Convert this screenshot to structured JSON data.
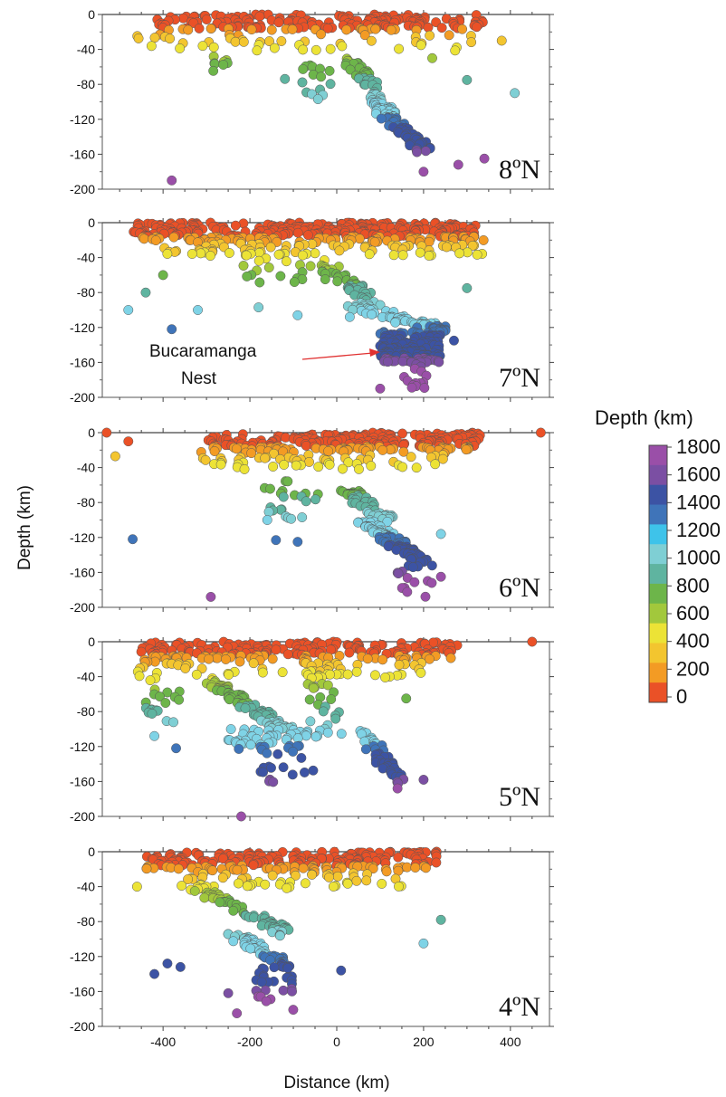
{
  "chart_data": {
    "type": "scatter",
    "xlabel": "Distance (km)",
    "ylabel": "Depth (km)",
    "xlim": [
      -540,
      490
    ],
    "ylim": [
      -200,
      0
    ],
    "xticks": [
      -400,
      -200,
      0,
      200,
      400
    ],
    "yticks": [
      0,
      -40,
      -80,
      -120,
      -160,
      -200
    ],
    "grid": false,
    "colorbar": {
      "title": "Depth (km)",
      "labels": [
        "1800",
        "1600",
        "1400",
        "1200",
        "1000",
        "800",
        "600",
        "400",
        "200",
        "0"
      ],
      "colors": [
        "#9a4fa8",
        "#7b4fa3",
        "#3c53a4",
        "#3f74b9",
        "#3ec3ea",
        "#7fcfd4",
        "#5fb4a0",
        "#6db54a",
        "#a2c83c",
        "#ece336",
        "#f3c52f",
        "#f39b24",
        "#ea5127"
      ]
    },
    "panels": [
      {
        "label": "8ºN",
        "clusters": [
          {
            "x": [
              -420,
              340
            ],
            "y": [
              0,
              -18
            ],
            "n": 180,
            "color_by": "depth"
          },
          {
            "x": [
              -470,
              340
            ],
            "y": [
              -22,
              -42
            ],
            "n": 45,
            "color_by": "depth"
          },
          {
            "x": [
              -290,
              -250
            ],
            "y": [
              -48,
              -68
            ],
            "n": 8,
            "color_by": "depth"
          },
          {
            "x": [
              -120,
              -10
            ],
            "y": [
              -58,
              -100
            ],
            "n": 16,
            "color_by": "depth"
          },
          {
            "x": [
              30,
              120
            ],
            "y": [
              -50,
              -115
            ],
            "n": 60,
            "color_by": "depth",
            "slab": true
          },
          {
            "x": [
              110,
              210
            ],
            "y": [
              -110,
              -160
            ],
            "n": 60,
            "color_by": "depth",
            "slab": true
          }
        ],
        "points": [
          {
            "x": -380,
            "y": -190
          },
          {
            "x": 410,
            "y": -90
          },
          {
            "x": 340,
            "y": -165
          },
          {
            "x": 280,
            "y": -172
          },
          {
            "x": 300,
            "y": -75
          },
          {
            "x": 220,
            "y": -50
          },
          {
            "x": 380,
            "y": -30
          },
          {
            "x": 200,
            "y": -180
          }
        ]
      },
      {
        "label": "7ºN",
        "annotation": [
          "Bucaramanga",
          "Nest"
        ],
        "clusters": [
          {
            "x": [
              -470,
              320
            ],
            "y": [
              0,
              -20
            ],
            "n": 300,
            "color_by": "depth"
          },
          {
            "x": [
              -420,
              350
            ],
            "y": [
              -20,
              -38
            ],
            "n": 110,
            "color_by": "depth"
          },
          {
            "x": [
              -240,
              -20
            ],
            "y": [
              -40,
              -70
            ],
            "n": 22,
            "color_by": "depth"
          },
          {
            "x": [
              -20,
              90
            ],
            "y": [
              -50,
              -95
            ],
            "n": 40,
            "color_by": "depth",
            "slab": true
          },
          {
            "x": [
              40,
              260
            ],
            "y": [
              -95,
              -125
            ],
            "n": 70,
            "color_by": "depth",
            "slab": true
          },
          {
            "x": [
              100,
              240
            ],
            "y": [
              -125,
              -160
            ],
            "n": 150,
            "color_by": "depth"
          },
          {
            "x": [
              150,
              210
            ],
            "y": [
              -160,
              -190
            ],
            "n": 14,
            "color_by": "depth"
          }
        ],
        "points": [
          {
            "x": -480,
            "y": -100
          },
          {
            "x": -440,
            "y": -80
          },
          {
            "x": -400,
            "y": -60
          },
          {
            "x": -380,
            "y": -122
          },
          {
            "x": -320,
            "y": -100
          },
          {
            "x": -180,
            "y": -97
          },
          {
            "x": -90,
            "y": -106
          },
          {
            "x": 300,
            "y": -75
          },
          {
            "x": 270,
            "y": -135
          },
          {
            "x": 30,
            "y": -108
          },
          {
            "x": 100,
            "y": -190
          }
        ]
      },
      {
        "label": "6ºN",
        "clusters": [
          {
            "x": [
              -300,
              330
            ],
            "y": [
              0,
              -20
            ],
            "n": 220,
            "color_by": "depth"
          },
          {
            "x": [
              -320,
              260
            ],
            "y": [
              -20,
              -42
            ],
            "n": 70,
            "color_by": "depth"
          },
          {
            "x": [
              -200,
              -40
            ],
            "y": [
              -55,
              -100
            ],
            "n": 22,
            "color_by": "depth"
          },
          {
            "x": [
              20,
              120
            ],
            "y": [
              -65,
              -100
            ],
            "n": 50,
            "color_by": "depth",
            "slab": true
          },
          {
            "x": [
              60,
              200
            ],
            "y": [
              -100,
              -150
            ],
            "n": 90,
            "color_by": "depth",
            "slab": true
          },
          {
            "x": [
              140,
              220
            ],
            "y": [
              -150,
              -188
            ],
            "n": 14,
            "color_by": "depth"
          }
        ],
        "points": [
          {
            "x": -530,
            "y": 0
          },
          {
            "x": -480,
            "y": -10
          },
          {
            "x": -510,
            "y": -27
          },
          {
            "x": -470,
            "y": -122
          },
          {
            "x": -290,
            "y": -188
          },
          {
            "x": -160,
            "y": -100
          },
          {
            "x": -140,
            "y": -123
          },
          {
            "x": -90,
            "y": -125
          },
          {
            "x": 240,
            "y": -116
          },
          {
            "x": 240,
            "y": -165
          },
          {
            "x": 470,
            "y": 0
          }
        ]
      },
      {
        "label": "5ºN",
        "clusters": [
          {
            "x": [
              -460,
              280
            ],
            "y": [
              0,
              -20
            ],
            "n": 200,
            "color_by": "depth"
          },
          {
            "x": [
              -460,
              200
            ],
            "y": [
              -20,
              -42
            ],
            "n": 70,
            "color_by": "depth"
          },
          {
            "x": [
              -440,
              -360
            ],
            "y": [
              -40,
              -95
            ],
            "n": 20,
            "color_by": "depth"
          },
          {
            "x": [
              -290,
              -120
            ],
            "y": [
              -45,
              -100
            ],
            "n": 80,
            "color_by": "depth",
            "slab": true
          },
          {
            "x": [
              -250,
              -60
            ],
            "y": [
              -100,
              -125
            ],
            "n": 45,
            "color_by": "depth"
          },
          {
            "x": [
              -180,
              -50
            ],
            "y": [
              -125,
              -165
            ],
            "n": 16,
            "color_by": "depth"
          },
          {
            "x": [
              -70,
              20
            ],
            "y": [
              -30,
              -110
            ],
            "n": 30,
            "color_by": "depth"
          },
          {
            "x": [
              60,
              140
            ],
            "y": [
              -100,
              -160
            ],
            "n": 45,
            "color_by": "depth",
            "slab": true
          }
        ],
        "points": [
          {
            "x": -420,
            "y": -108
          },
          {
            "x": -370,
            "y": -122
          },
          {
            "x": -220,
            "y": -200
          },
          {
            "x": 200,
            "y": -158
          },
          {
            "x": 160,
            "y": -65
          },
          {
            "x": 450,
            "y": 0
          },
          {
            "x": 140,
            "y": -168
          }
        ]
      },
      {
        "label": "4ºN",
        "clusters": [
          {
            "x": [
              -440,
              230
            ],
            "y": [
              0,
              -20
            ],
            "n": 210,
            "color_by": "depth"
          },
          {
            "x": [
              -360,
              150
            ],
            "y": [
              -20,
              -42
            ],
            "n": 60,
            "color_by": "depth"
          },
          {
            "x": [
              -320,
              -110
            ],
            "y": [
              -40,
              -95
            ],
            "n": 70,
            "color_by": "depth",
            "slab": true
          },
          {
            "x": [
              -240,
              -110
            ],
            "y": [
              -95,
              -130
            ],
            "n": 50,
            "color_by": "depth",
            "slab": true
          },
          {
            "x": [
              -190,
              -100
            ],
            "y": [
              -130,
              -182
            ],
            "n": 28,
            "color_by": "depth"
          }
        ],
        "points": [
          {
            "x": -460,
            "y": -40
          },
          {
            "x": -420,
            "y": -140
          },
          {
            "x": -390,
            "y": -128
          },
          {
            "x": -360,
            "y": -132
          },
          {
            "x": -250,
            "y": -162
          },
          {
            "x": -230,
            "y": -185
          },
          {
            "x": 10,
            "y": -136
          },
          {
            "x": 200,
            "y": -105
          },
          {
            "x": 240,
            "y": -78
          },
          {
            "x": 230,
            "y": 0
          }
        ]
      }
    ]
  }
}
